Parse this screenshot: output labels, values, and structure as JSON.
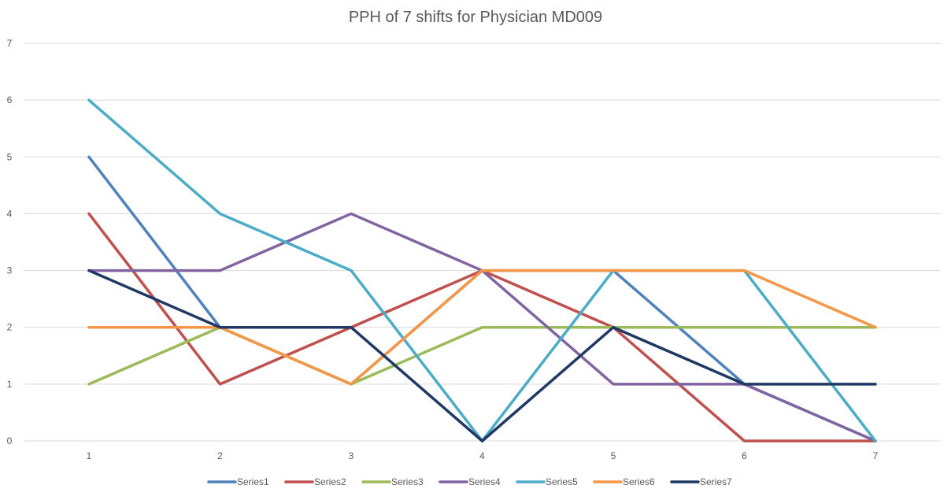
{
  "chart_data": {
    "type": "line",
    "title": "PPH of 7 shifts for Physician MD009",
    "xlabel": "",
    "ylabel": "",
    "x": [
      1,
      2,
      3,
      4,
      5,
      6,
      7
    ],
    "x_tick_labels": [
      "1",
      "2",
      "3",
      "4",
      "5",
      "6",
      "7"
    ],
    "y_tick_labels": [
      "0",
      "1",
      "2",
      "3",
      "4",
      "5",
      "6",
      "7"
    ],
    "ylim": [
      0,
      7
    ],
    "grid": true,
    "legend_position": "bottom",
    "series": [
      {
        "name": "Series1",
        "color": "#4f81bd",
        "values": [
          5,
          2,
          1,
          3,
          3,
          1,
          0
        ]
      },
      {
        "name": "Series2",
        "color": "#c0504d",
        "values": [
          4,
          1,
          2,
          3,
          2,
          0,
          0
        ]
      },
      {
        "name": "Series3",
        "color": "#9bbb59",
        "values": [
          1,
          2,
          1,
          2,
          2,
          2,
          2
        ]
      },
      {
        "name": "Series4",
        "color": "#8064a2",
        "values": [
          3,
          3,
          4,
          3,
          1,
          1,
          0
        ]
      },
      {
        "name": "Series5",
        "color": "#4bacc6",
        "values": [
          6,
          4,
          3,
          0,
          3,
          3,
          0
        ]
      },
      {
        "name": "Series6",
        "color": "#f79646",
        "values": [
          2,
          2,
          1,
          3,
          3,
          3,
          2
        ]
      },
      {
        "name": "Series7",
        "color": "#1f3864",
        "values": [
          3,
          2,
          2,
          0,
          2,
          1,
          1
        ]
      }
    ]
  }
}
